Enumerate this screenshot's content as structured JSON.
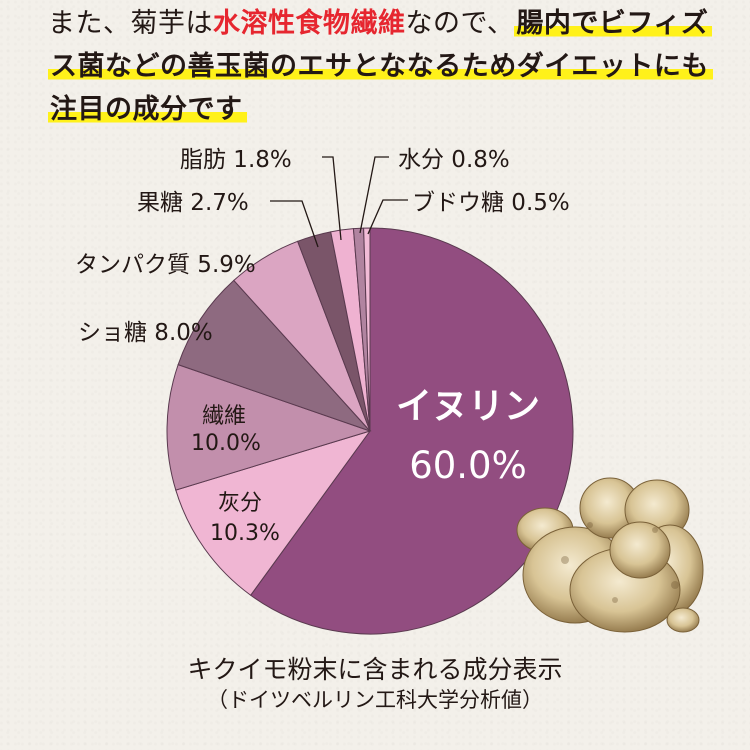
{
  "intro": {
    "line1": [
      {
        "text": "また、菊芋は",
        "style": "plain"
      },
      {
        "text": "水溶性食物繊維",
        "style": "red"
      },
      {
        "text": "なので、",
        "style": "plain"
      },
      {
        "text": "腸内でビフィズ",
        "style": "hl"
      }
    ],
    "line2": [
      {
        "text": "ス菌などの善玉菌のエサとななるためダイエットにも",
        "style": "hl"
      }
    ],
    "line3": [
      {
        "text": "注目の成分です",
        "style": "hl"
      }
    ]
  },
  "colors": {
    "background": "#f3f0ea",
    "highlight": "#fff11a",
    "emphasis_red": "#e6262f",
    "text": "#231815",
    "slice_outline": "#5a3a4f"
  },
  "chart_data": {
    "type": "pie",
    "title": "キクイモ粉末に含まれる成分表示",
    "subtitle": "（ドイツベルリン工科大学分析値）",
    "start_angle_deg": 0,
    "direction": "clockwise",
    "center": [
      370,
      431
    ],
    "radius": 203,
    "slices": [
      {
        "label": "イヌリン",
        "value": 60.0,
        "display": "60.0%",
        "color": "#924d80",
        "label_pos": "inside",
        "text_color": "#ffffff"
      },
      {
        "label": "灰分",
        "value": 10.3,
        "display": "10.3%",
        "color": "#f0b6d3",
        "label_pos": "inside",
        "text_color": "#231815"
      },
      {
        "label": "繊維",
        "value": 10.0,
        "display": "10.0%",
        "color": "#c28fac",
        "label_pos": "inside",
        "text_color": "#231815"
      },
      {
        "label": "ショ糖",
        "value": 8.0,
        "display": "8.0%",
        "color": "#8e6a80",
        "label_pos": "outside",
        "text_color": "#231815"
      },
      {
        "label": "タンパク質",
        "value": 5.9,
        "display": "5.9%",
        "color": "#dba5c2",
        "label_pos": "outside",
        "text_color": "#231815"
      },
      {
        "label": "果糖",
        "value": 2.7,
        "display": "2.7%",
        "color": "#7a5569",
        "label_pos": "leader",
        "text_color": "#231815"
      },
      {
        "label": "脂肪",
        "value": 1.8,
        "display": "1.8%",
        "color": "#efb2d1",
        "label_pos": "leader",
        "text_color": "#231815"
      },
      {
        "label": "水分",
        "value": 0.8,
        "display": "0.8%",
        "color": "#b184a0",
        "label_pos": "leader",
        "text_color": "#231815"
      },
      {
        "label": "ブドウ糖",
        "value": 0.5,
        "display": "0.5%",
        "color": "#f2bcd7",
        "label_pos": "leader",
        "text_color": "#231815"
      }
    ],
    "labels_text": {
      "inulin_name": "イヌリン",
      "inulin_value": "60.0%",
      "ash_name": "灰分",
      "ash_value": "10.3%",
      "fiber_name": "繊維",
      "fiber_value": "10.0%",
      "sucrose": "ショ糖 8.0%",
      "protein": "タンパク質 5.9%",
      "fructose": "果糖 2.7%",
      "fat": "脂肪 1.8%",
      "water": "水分 0.8%",
      "glucose": "ブドウ糖 0.5%"
    }
  },
  "image": {
    "subject": "jerusalem-artichoke-tuber"
  }
}
